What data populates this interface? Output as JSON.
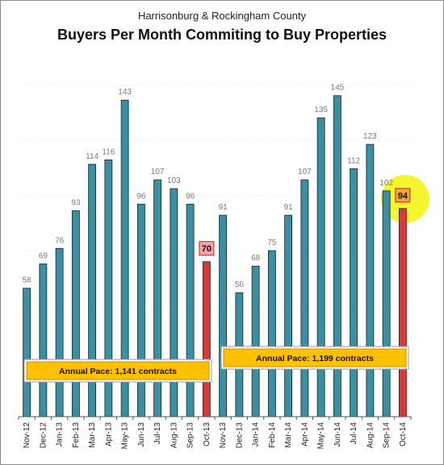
{
  "chart_data": {
    "type": "bar",
    "subtitle": "Harrisonburg & Rockingham County",
    "title": "Buyers Per Month Commiting to Buy Properties",
    "xlabel": "",
    "ylabel": "",
    "ylim": [
      0,
      160
    ],
    "grid": true,
    "categories": [
      "Nov-12",
      "Dec-12",
      "Jan-13",
      "Feb-13",
      "Mar-13",
      "Apr-13",
      "May-13",
      "Jun-13",
      "Jul-13",
      "Aug-13",
      "Sep-13",
      "Oct-13",
      "Nov-13",
      "Dec-13",
      "Jan-14",
      "Feb-14",
      "Mar-14",
      "Apr-14",
      "May-14",
      "Jun-14",
      "Jul-14",
      "Aug-14",
      "Sep-14",
      "Oct-14"
    ],
    "values": [
      58,
      69,
      76,
      93,
      114,
      116,
      143,
      96,
      107,
      103,
      96,
      70,
      91,
      56,
      68,
      75,
      91,
      107,
      135,
      145,
      112,
      123,
      102,
      94
    ],
    "colors": {
      "bar": "#3a8fa3",
      "highlight_bar": "#d63b3b",
      "highlight_label_fill": "#f4a4a4",
      "highlight_label_fill_latest": "#f7a534",
      "latest_glow": "#f2f20a",
      "note_fill": "#ffc000"
    },
    "highlighted": [
      "Oct-13",
      "Oct-14"
    ],
    "annotations": [
      {
        "text": "Annual Pace: 1,141 contracts",
        "span": [
          "Nov-12",
          "Oct-13"
        ]
      },
      {
        "text": "Annual Pace: 1,199 contracts",
        "span": [
          "Nov-13",
          "Oct-14"
        ]
      }
    ]
  }
}
